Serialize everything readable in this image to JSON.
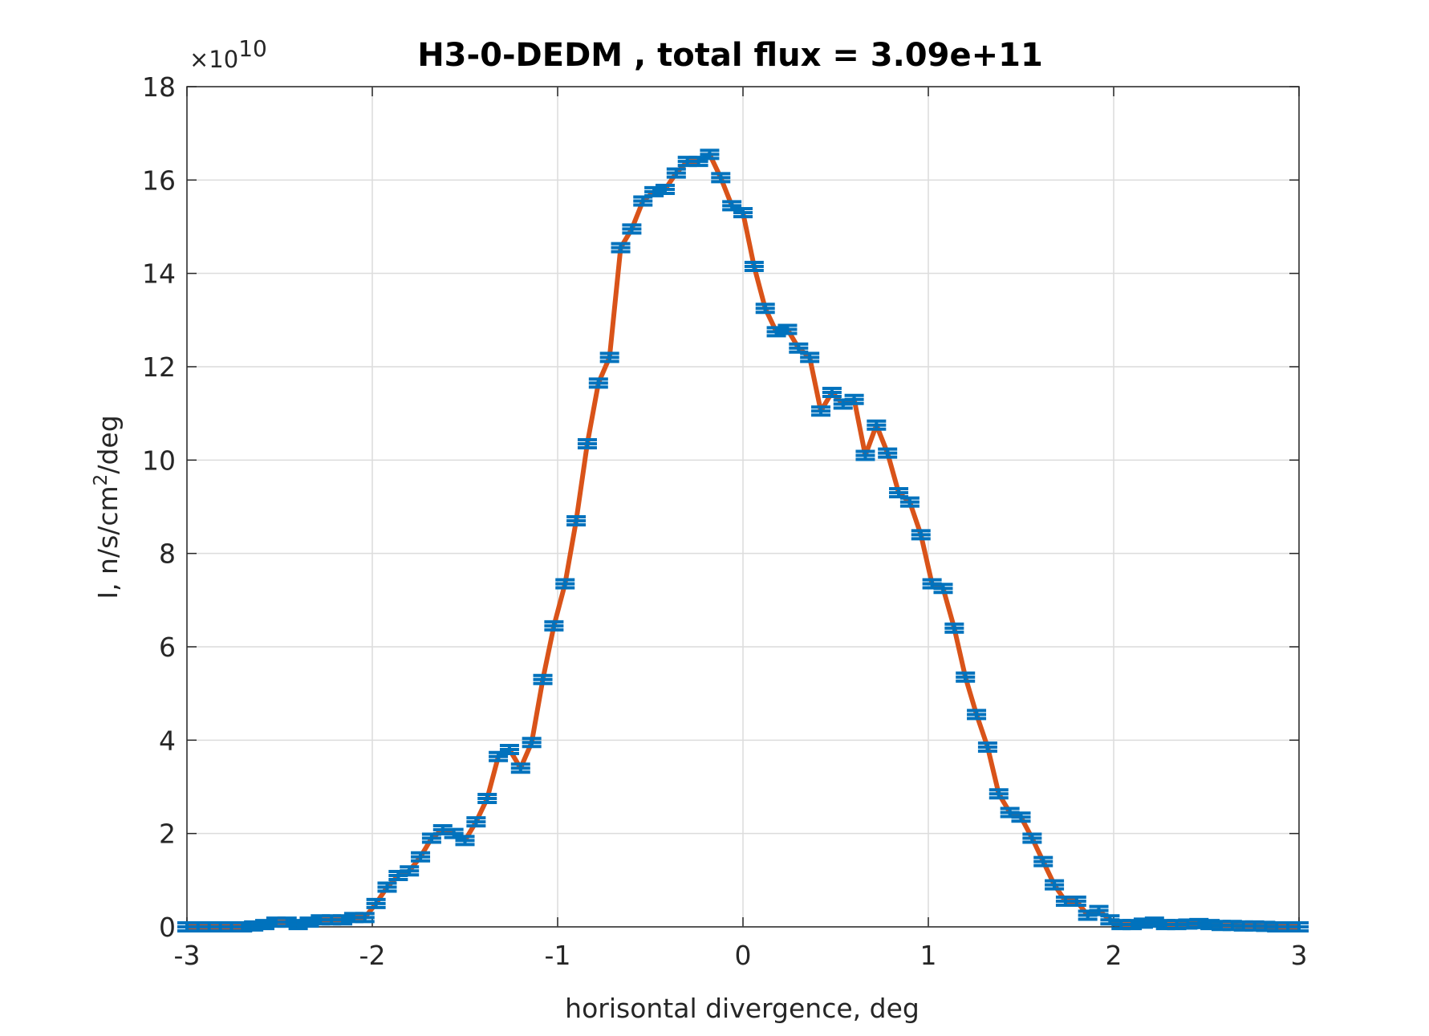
{
  "chart_data": {
    "type": "line",
    "title": "H3-0-DEDM , total flux =  3.09e+11",
    "x_label": "horisontal divergence, deg",
    "y_label": {
      "start": "I, n/s/cm",
      "sup": "2",
      "end": "/deg"
    },
    "y_multiplier": {
      "base": "×10",
      "exponent": "10"
    },
    "xlim": [
      -3,
      3
    ],
    "xticks": [
      -3,
      -2,
      -1,
      0,
      1,
      2,
      3
    ],
    "ylim": [
      0,
      18
    ],
    "yticks": [
      0,
      2,
      4,
      6,
      8,
      10,
      12,
      14,
      16,
      18
    ],
    "grid": true,
    "x": [
      -3,
      -2.94,
      -2.88,
      -2.82,
      -2.76,
      -2.7,
      -2.64,
      -2.58,
      -2.52,
      -2.46,
      -2.4,
      -2.34,
      -2.28,
      -2.22,
      -2.16,
      -2.1,
      -2.04,
      -1.98,
      -1.92,
      -1.86,
      -1.8,
      -1.74,
      -1.68,
      -1.62,
      -1.56,
      -1.5,
      -1.44,
      -1.38,
      -1.32,
      -1.26,
      -1.2,
      -1.14,
      -1.08,
      -1.02,
      -0.96,
      -0.9,
      -0.84,
      -0.78,
      -0.72,
      -0.66,
      -0.6,
      -0.54,
      -0.48,
      -0.42,
      -0.36,
      -0.3,
      -0.24,
      -0.18,
      -0.12,
      -0.06,
      0,
      0.06,
      0.12,
      0.18,
      0.24,
      0.3,
      0.36,
      0.42,
      0.48,
      0.54,
      0.6,
      0.66,
      0.72,
      0.78,
      0.84,
      0.9,
      0.96,
      1.02,
      1.08,
      1.14,
      1.2,
      1.26,
      1.32,
      1.38,
      1.44,
      1.5,
      1.56,
      1.62,
      1.68,
      1.74,
      1.8,
      1.86,
      1.92,
      1.98,
      2.04,
      2.1,
      2.16,
      2.22,
      2.28,
      2.34,
      2.4,
      2.46,
      2.52,
      2.58,
      2.64,
      2.7,
      2.76,
      2.82,
      2.88,
      2.94,
      3
    ],
    "series": [
      {
        "color": "#d95319",
        "marker_color": "#0072bd",
        "values": [
          0,
          0,
          0,
          0,
          0,
          0,
          0.02,
          0.05,
          0.1,
          0.1,
          0.05,
          0.1,
          0.15,
          0.15,
          0.15,
          0.2,
          0.2,
          0.5,
          0.85,
          1.1,
          1.2,
          1.5,
          1.9,
          2.08,
          2.0,
          1.85,
          2.25,
          2.75,
          3.65,
          3.8,
          3.4,
          3.95,
          5.3,
          6.45,
          7.35,
          8.7,
          10.35,
          11.65,
          12.2,
          14.55,
          14.95,
          15.55,
          15.75,
          15.8,
          16.15,
          16.4,
          16.4,
          16.55,
          16.05,
          15.45,
          15.3,
          14.15,
          13.25,
          12.75,
          12.8,
          12.4,
          12.2,
          11.05,
          11.45,
          11.2,
          11.3,
          10.1,
          10.75,
          10.15,
          9.3,
          9.1,
          8.4,
          7.35,
          7.25,
          6.4,
          5.35,
          4.55,
          3.85,
          2.85,
          2.45,
          2.35,
          1.9,
          1.4,
          0.9,
          0.55,
          0.55,
          0.25,
          0.35,
          0.15,
          0.05,
          0.05,
          0.08,
          0.1,
          0.05,
          0.05,
          0.06,
          0.07,
          0.05,
          0.03,
          0.03,
          0.02,
          0.02,
          0.01,
          0,
          0,
          0
        ]
      }
    ]
  }
}
